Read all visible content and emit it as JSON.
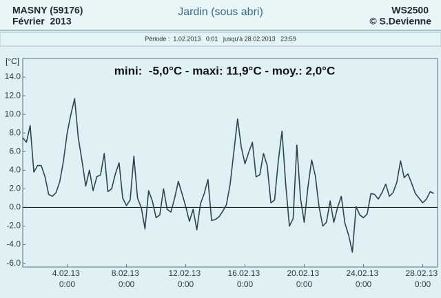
{
  "chart_data": {
    "type": "line",
    "title": "Jardin (sous abri)",
    "header_left": [
      "MASNY (59176)",
      "Février  2013"
    ],
    "header_right": [
      "WS2500",
      "© S.Devienne"
    ],
    "subtitle": "Période :  1.02.2013   0:01   jusqu'à 28.02.2013   23:59",
    "annotation": "mini:  -5,0°C - maxi: 11,9°C - moy.: 2,0°C",
    "ylabel": "[°C]",
    "color": "#2e4250",
    "zero_line": true,
    "grid": false,
    "xlim": [
      "1.02.13 0:00",
      "1.03.13 0:00"
    ],
    "xticks": [
      "4.02.13 0:00",
      "8.02.13 0:00",
      "12.02.13 0:00",
      "16.02.13 0:00",
      "20.02.13 0:00",
      "24.02.13 0:00",
      "28.02.13 0:00"
    ],
    "ylim": [
      -6.4,
      16
    ],
    "yticks": [
      {
        "value": -6,
        "label": "-6.0"
      },
      {
        "value": -4,
        "label": "-4.0"
      },
      {
        "value": -2,
        "label": "-2.0"
      },
      {
        "value": 0,
        "label": "0.0"
      },
      {
        "value": 2,
        "label": "2.0"
      },
      {
        "value": 4,
        "label": "4.0"
      },
      {
        "value": 6,
        "label": "6.0"
      },
      {
        "value": 8,
        "label": "8.0"
      },
      {
        "value": 10,
        "label": "10.0"
      },
      {
        "value": 12,
        "label": "12.0"
      },
      {
        "value": 14,
        "label": "14.0"
      }
    ],
    "x": [
      "1.02.13 0:00",
      "1.02.13 6:00",
      "1.02.13 12:00",
      "1.02.13 18:00",
      "2.02.13 0:00",
      "2.02.13 6:00",
      "2.02.13 12:00",
      "2.02.13 18:00",
      "3.02.13 0:00",
      "3.02.13 6:00",
      "3.02.13 12:00",
      "3.02.13 18:00",
      "4.02.13 0:00",
      "4.02.13 6:00",
      "4.02.13 12:00",
      "4.02.13 18:00",
      "5.02.13 0:00",
      "5.02.13 6:00",
      "5.02.13 12:00",
      "5.02.13 18:00",
      "6.02.13 0:00",
      "6.02.13 6:00",
      "6.02.13 12:00",
      "6.02.13 18:00",
      "7.02.13 0:00",
      "7.02.13 6:00",
      "7.02.13 12:00",
      "7.02.13 18:00",
      "8.02.13 0:00",
      "8.02.13 6:00",
      "8.02.13 12:00",
      "8.02.13 18:00",
      "9.02.13 0:00",
      "9.02.13 6:00",
      "9.02.13 12:00",
      "9.02.13 18:00",
      "10.02.13 0:00",
      "10.02.13 6:00",
      "10.02.13 12:00",
      "10.02.13 18:00",
      "11.02.13 0:00",
      "11.02.13 6:00",
      "11.02.13 12:00",
      "11.02.13 18:00",
      "12.02.13 0:00",
      "12.02.13 6:00",
      "12.02.13 12:00",
      "12.02.13 18:00",
      "13.02.13 0:00",
      "13.02.13 6:00",
      "13.02.13 12:00",
      "13.02.13 18:00",
      "14.02.13 0:00",
      "14.02.13 6:00",
      "14.02.13 12:00",
      "14.02.13 18:00",
      "15.02.13 0:00",
      "15.02.13 6:00",
      "15.02.13 12:00",
      "15.02.13 18:00",
      "16.02.13 0:00",
      "16.02.13 6:00",
      "16.02.13 12:00",
      "16.02.13 18:00",
      "17.02.13 0:00",
      "17.02.13 6:00",
      "17.02.13 12:00",
      "17.02.13 18:00",
      "18.02.13 0:00",
      "18.02.13 6:00",
      "18.02.13 12:00",
      "18.02.13 18:00",
      "19.02.13 0:00",
      "19.02.13 6:00",
      "19.02.13 12:00",
      "19.02.13 18:00",
      "20.02.13 0:00",
      "20.02.13 6:00",
      "20.02.13 12:00",
      "20.02.13 18:00",
      "21.02.13 0:00",
      "21.02.13 6:00",
      "21.02.13 12:00",
      "21.02.13 18:00",
      "22.02.13 0:00",
      "22.02.13 6:00",
      "22.02.13 12:00",
      "22.02.13 18:00",
      "23.02.13 0:00",
      "23.02.13 6:00",
      "23.02.13 12:00",
      "23.02.13 18:00",
      "24.02.13 0:00",
      "24.02.13 6:00",
      "24.02.13 12:00",
      "24.02.13 18:00",
      "25.02.13 0:00",
      "25.02.13 6:00",
      "25.02.13 12:00",
      "25.02.13 18:00",
      "26.02.13 0:00",
      "26.02.13 6:00",
      "26.02.13 12:00",
      "26.02.13 18:00",
      "27.02.13 0:00",
      "27.02.13 6:00",
      "27.02.13 12:00",
      "27.02.13 18:00",
      "28.02.13 0:00",
      "28.02.13 6:00",
      "28.02.13 12:00",
      "28.02.13 18:00"
    ],
    "values": [
      7.5,
      7.0,
      8.8,
      3.8,
      4.5,
      4.5,
      3.3,
      1.4,
      1.2,
      1.6,
      2.8,
      5.0,
      8.0,
      10.0,
      11.7,
      7.5,
      5.0,
      2.3,
      4.0,
      1.8,
      3.3,
      3.5,
      5.8,
      1.7,
      2.0,
      3.6,
      4.8,
      1.0,
      0.2,
      0.8,
      5.5,
      1.0,
      0,
      -2.3,
      1.8,
      0.7,
      -1.1,
      -0.8,
      2.0,
      -0.2,
      -0.5,
      1.0,
      2.8,
      1.5,
      0.1,
      -1.5,
      -0.2,
      -2.4,
      0.4,
      1.5,
      3.0,
      -1.4,
      -1.3,
      -1.0,
      -0.4,
      0.3,
      2.5,
      6.0,
      9.5,
      6.5,
      4.7,
      5.9,
      7.0,
      3.3,
      3.5,
      5.8,
      4.5,
      0.5,
      0.8,
      5.0,
      8.2,
      2.5,
      -2.0,
      -1.2,
      6.7,
      1.0,
      -1.6,
      2.2,
      5.1,
      3.4,
      0.1,
      -2.0,
      -1.6,
      0.7,
      -1.6,
      0,
      1.2,
      -1.7,
      -3.0,
      -4.8,
      0.1,
      -0.8,
      -1.1,
      -0.7,
      1.5,
      1.4,
      0.9,
      1.6,
      2.5,
      1.2,
      1.6,
      2.7,
      5.0,
      3.2,
      3.6,
      2.6,
      1.5,
      1.0,
      0.5,
      0.9,
      1.7,
      1.5
    ]
  }
}
